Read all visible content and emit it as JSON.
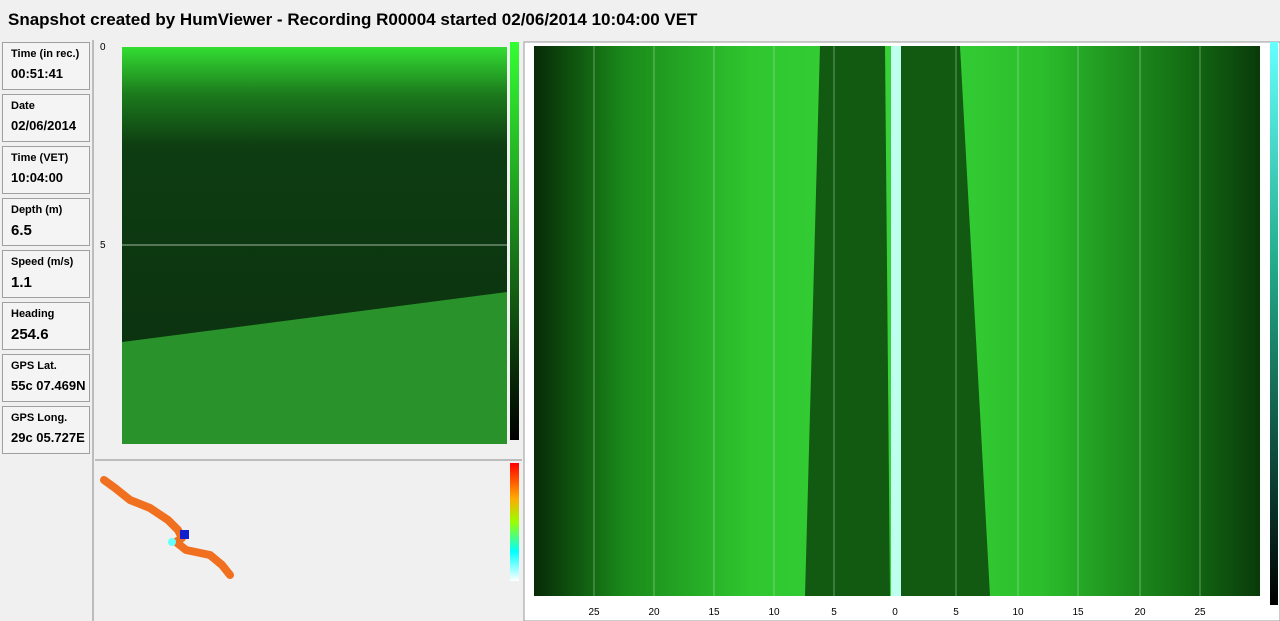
{
  "header": {
    "title": "Snapshot created by HumViewer - Recording R00004 started 02/06/2014 10:04:00 VET"
  },
  "fields": [
    {
      "label": "Time (in rec.)",
      "value": "00:51:41"
    },
    {
      "label": "Date",
      "value": "02/06/2014"
    },
    {
      "label": "Time (VET)",
      "value": "10:04:00"
    },
    {
      "label": "Depth (m)",
      "value": "6.5"
    },
    {
      "label": "Speed (m/s)",
      "value": "1.1"
    },
    {
      "label": "Heading",
      "value": "254.6"
    },
    {
      "label": "GPS Lat.",
      "value": "55c 07.469N"
    },
    {
      "label": "GPS Long.",
      "value": "29c 05.727E"
    }
  ],
  "down_view": {
    "depth_ticks": [
      "0",
      "5"
    ]
  },
  "side_view": {
    "range_ticks": [
      "25",
      "20",
      "15",
      "10",
      "5",
      "0",
      "5",
      "10",
      "15",
      "20",
      "25"
    ]
  }
}
